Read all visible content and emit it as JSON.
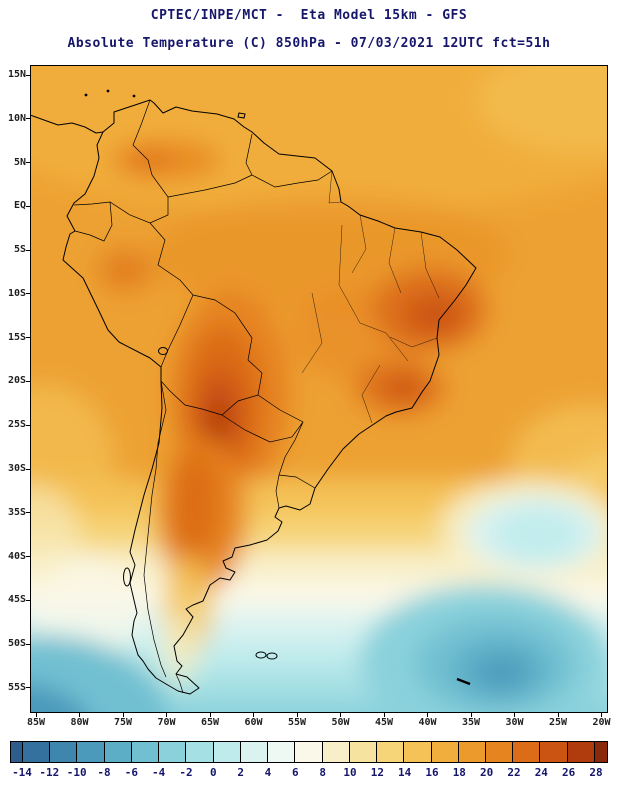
{
  "header": {
    "title_line1": "CPTEC/INPE/MCT -  Eta Model 15km - GFS",
    "title_line2": "Absolute Temperature (C) 850hPa - 07/03/2021 12UTC fct=51h"
  },
  "map": {
    "lat_labels": [
      "15N",
      "10N",
      "5N",
      "EQ",
      "5S",
      "10S",
      "15S",
      "20S",
      "25S",
      "30S",
      "35S",
      "40S",
      "45S",
      "50S",
      "55S"
    ],
    "lon_labels": [
      "85W",
      "80W",
      "75W",
      "70W",
      "65W",
      "60W",
      "55W",
      "50W",
      "45W",
      "40W",
      "35W",
      "30W",
      "25W",
      "20W"
    ]
  },
  "colorbar": {
    "unit": "C",
    "tick_labels": [
      "-14",
      "-12",
      "-10",
      "-8",
      "-6",
      "-4",
      "-2",
      "0",
      "2",
      "4",
      "6",
      "8",
      "10",
      "12",
      "14",
      "16",
      "18",
      "20",
      "22",
      "24",
      "26",
      "28"
    ],
    "cell_colors": [
      "#2e5d8d",
      "#35719f",
      "#3f86ad",
      "#4b9abb",
      "#5cadc6",
      "#71c0d1",
      "#8ad1db",
      "#a5e0e4",
      "#c0ebec",
      "#daf3f1",
      "#eef9f4",
      "#faf8e8",
      "#f8efc8",
      "#f7e3a0",
      "#f6d478",
      "#f4c256",
      "#f1ae3c",
      "#ec9a2c",
      "#e68420",
      "#dc6c18",
      "#cc5412",
      "#b03c0e",
      "#8a280a"
    ]
  },
  "colors": {
    "title_text": "#16166b",
    "axis_text": "#1f1f1f",
    "colorbar_label_text": "#16166b",
    "frame": "#000000",
    "warm_base": "#eda133",
    "hot_core": "#b03c0e",
    "cold_core": "#3f86ad"
  }
}
